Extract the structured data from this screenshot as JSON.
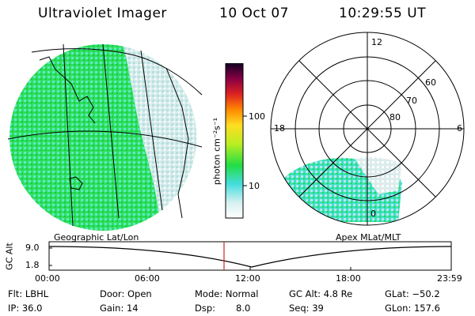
{
  "header": {
    "instrument": "Ultraviolet Imager",
    "date": "10 Oct 07",
    "time": "10:29:55 UT"
  },
  "colorbar": {
    "unit_label": "photon cm⁻²s⁻¹",
    "ticks": [
      "100",
      "10"
    ]
  },
  "polar_plot": {
    "mlt_labels": [
      "12",
      "18",
      "6",
      "0"
    ],
    "mlat_labels": [
      "60",
      "70",
      "80"
    ]
  },
  "map_labels": {
    "left": "Geographic Lat/Lon",
    "right": "Apex MLat/MLT"
  },
  "altitude_plot": {
    "ylabel": "GC Alt",
    "yticks": [
      "9.0",
      "1.8"
    ],
    "xticks": [
      "00:00",
      "06:00",
      "12:00",
      "18:00",
      "23:59"
    ],
    "current_time_marker": "10:29:55"
  },
  "status": {
    "flt": "Flt: LBHL",
    "ip": "IP: 36.0",
    "door": "Door: Open",
    "gain": "Gain: 14",
    "mode": "Mode: Normal",
    "dsp_label": "Dsp:",
    "dsp_value": "8.0",
    "gc_alt": "GC Alt: 4.8 Re",
    "seq": "Seq: 39",
    "glat": "GLat: −50.2",
    "glon": "GLon: 157.6"
  },
  "colors": {
    "aurora_green": "#22dd44",
    "aurora_cyan": "#44dddd",
    "aurora_pale": "#cfe8e8",
    "marker_red": "#dd2222"
  }
}
